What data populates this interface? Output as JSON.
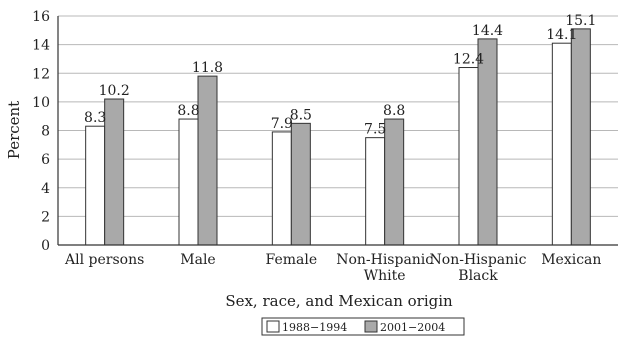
{
  "chart_data": {
    "type": "bar",
    "categories": [
      [
        "All persons"
      ],
      [
        "Male"
      ],
      [
        "Female"
      ],
      [
        "Non-Hispanic",
        "White"
      ],
      [
        "Non-Hispanic",
        "Black"
      ],
      [
        "Mexican"
      ]
    ],
    "series": [
      {
        "name": "1988−1994",
        "values": [
          8.3,
          8.8,
          7.9,
          7.5,
          12.4,
          14.1
        ],
        "value_labels": [
          "8.3",
          "8.8",
          "7.9",
          "7.5",
          "12.4",
          "14.1"
        ],
        "color": "#ffffff"
      },
      {
        "name": "2001−2004",
        "values": [
          10.2,
          11.8,
          8.5,
          8.8,
          14.4,
          15.1
        ],
        "value_labels": [
          "10.2",
          "11.8",
          "8.5",
          "8.8",
          "14.4",
          "15.1"
        ],
        "color": "#a9a9a9"
      }
    ],
    "ylim": [
      0,
      16
    ],
    "yticks": [
      0,
      2,
      4,
      6,
      8,
      10,
      12,
      14,
      16
    ],
    "ylabel": "Percent",
    "xlabel": "Sex, race, and Mexican origin",
    "grid": true,
    "legend_position": "bottom-center"
  }
}
